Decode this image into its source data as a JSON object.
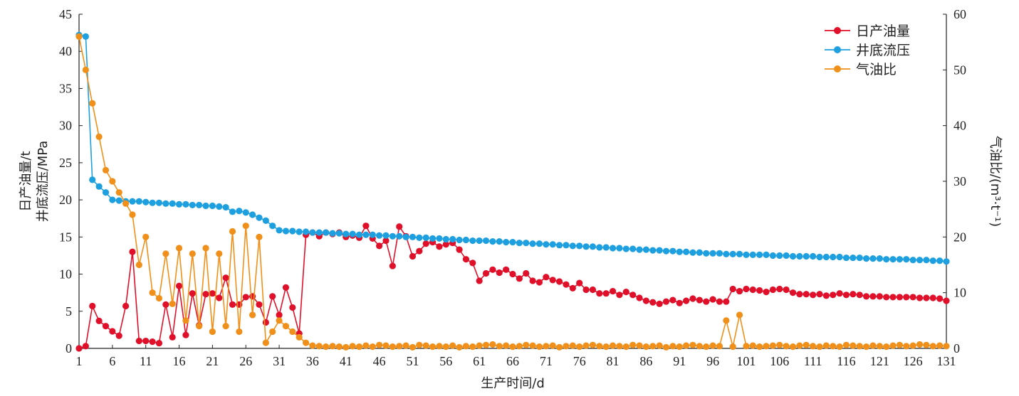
{
  "chart_data": {
    "type": "line",
    "xlabel": "生产时间/d",
    "ylabel_left_line1": "日产油量/t",
    "ylabel_left_line2": "井底流压/MPa",
    "ylabel_right": "气油比/(m³·t⁻¹)",
    "xlim": [
      1,
      131
    ],
    "x_ticks": [
      1,
      6,
      11,
      16,
      21,
      26,
      31,
      36,
      41,
      46,
      51,
      56,
      61,
      66,
      71,
      76,
      81,
      86,
      91,
      96,
      101,
      106,
      111,
      116,
      121,
      126,
      131
    ],
    "ylim_left": [
      0,
      45
    ],
    "y_ticks_left": [
      0,
      5,
      10,
      15,
      20,
      25,
      30,
      35,
      40,
      45
    ],
    "ylim_right": [
      0,
      60
    ],
    "y_ticks_right": [
      0,
      10,
      20,
      30,
      40,
      50,
      60
    ],
    "legend_position": "top-right",
    "series": [
      {
        "name": "日产油量",
        "axis": "left",
        "color": "#e0102a",
        "x": [
          1,
          2,
          3,
          4,
          5,
          6,
          7,
          8,
          9,
          10,
          11,
          12,
          13,
          14,
          15,
          16,
          17,
          18,
          19,
          20,
          21,
          22,
          23,
          24,
          25,
          26,
          27,
          28,
          29,
          30,
          31,
          32,
          33,
          34,
          35,
          36,
          37,
          38,
          39,
          40,
          41,
          42,
          43,
          44,
          45,
          46,
          47,
          48,
          49,
          50,
          51,
          52,
          53,
          54,
          55,
          56,
          57,
          58,
          59,
          60,
          61,
          62,
          63,
          64,
          65,
          66,
          67,
          68,
          69,
          70,
          71,
          72,
          73,
          74,
          75,
          76,
          77,
          78,
          79,
          80,
          81,
          82,
          83,
          84,
          85,
          86,
          87,
          88,
          89,
          90,
          91,
          92,
          93,
          94,
          95,
          96,
          97,
          98,
          99,
          100,
          101,
          102,
          103,
          104,
          105,
          106,
          107,
          108,
          109,
          110,
          111,
          112,
          113,
          114,
          115,
          116,
          117,
          118,
          119,
          120,
          121,
          122,
          123,
          124,
          125,
          126,
          127,
          128,
          129,
          130,
          131
        ],
        "values": [
          0,
          0.3,
          5.7,
          3.7,
          3.0,
          2.3,
          1.7,
          5.7,
          13.0,
          1.0,
          1.0,
          0.9,
          0.7,
          5.9,
          1.5,
          8.4,
          1.8,
          7.4,
          3.1,
          7.3,
          7.4,
          6.8,
          9.5,
          5.9,
          5.9,
          6.9,
          7.0,
          5.9,
          3.5,
          7.0,
          4.5,
          8.2,
          5.5,
          2.0,
          15.3,
          15.6,
          15.1,
          15.6,
          15.4,
          15.6,
          15.0,
          15.2,
          14.9,
          16.5,
          14.8,
          13.8,
          14.5,
          11.1,
          16.4,
          15.1,
          12.4,
          13.1,
          14.1,
          14.3,
          13.7,
          14.0,
          14.2,
          13.3,
          12.0,
          11.5,
          9.1,
          10.1,
          10.6,
          10.2,
          10.6,
          10.0,
          9.4,
          10.1,
          9.1,
          8.9,
          9.6,
          9.2,
          9.0,
          8.6,
          8.1,
          8.8,
          7.9,
          7.9,
          7.4,
          7.4,
          7.7,
          7.2,
          7.6,
          7.2,
          6.8,
          6.4,
          6.2,
          6.0,
          6.3,
          6.5,
          6.1,
          6.4,
          6.7,
          6.5,
          6.3,
          6.6,
          6.3,
          6.3,
          8.0,
          7.7,
          8.0,
          7.9,
          7.8,
          7.6,
          7.9,
          8.0,
          7.9,
          7.5,
          7.3,
          7.3,
          7.2,
          7.3,
          7.1,
          7.2,
          7.4,
          7.2,
          7.3,
          7.2,
          7.0,
          7.0,
          7.0,
          6.9,
          6.9,
          6.9,
          6.9,
          6.9,
          6.8,
          6.8,
          6.8,
          6.7,
          6.4
        ]
      },
      {
        "name": "井底流压",
        "axis": "left",
        "color": "#1ea0e0",
        "x": [
          1,
          2,
          3,
          4,
          5,
          6,
          7,
          8,
          9,
          10,
          11,
          12,
          13,
          14,
          15,
          16,
          17,
          18,
          19,
          20,
          21,
          22,
          23,
          24,
          25,
          26,
          27,
          28,
          29,
          30,
          31,
          32,
          33,
          34,
          35,
          36,
          37,
          38,
          39,
          40,
          41,
          42,
          43,
          44,
          45,
          46,
          47,
          48,
          49,
          50,
          51,
          52,
          53,
          54,
          55,
          56,
          57,
          58,
          59,
          60,
          61,
          62,
          63,
          64,
          65,
          66,
          67,
          68,
          69,
          70,
          71,
          72,
          73,
          74,
          75,
          76,
          77,
          78,
          79,
          80,
          81,
          82,
          83,
          84,
          85,
          86,
          87,
          88,
          89,
          90,
          91,
          92,
          93,
          94,
          95,
          96,
          97,
          98,
          99,
          100,
          101,
          102,
          103,
          104,
          105,
          106,
          107,
          108,
          109,
          110,
          111,
          112,
          113,
          114,
          115,
          116,
          117,
          118,
          119,
          120,
          121,
          122,
          123,
          124,
          125,
          126,
          127,
          128,
          129,
          130,
          131
        ],
        "values": [
          42.2,
          42.0,
          22.7,
          21.8,
          21.0,
          20.0,
          19.9,
          19.8,
          19.8,
          19.8,
          19.7,
          19.6,
          19.6,
          19.5,
          19.5,
          19.4,
          19.4,
          19.3,
          19.3,
          19.2,
          19.2,
          19.1,
          19.0,
          18.4,
          18.5,
          18.3,
          18.0,
          17.6,
          17.2,
          16.5,
          15.9,
          15.8,
          15.8,
          15.7,
          15.7,
          15.6,
          15.6,
          15.6,
          15.5,
          15.5,
          15.4,
          15.4,
          15.3,
          15.3,
          15.3,
          15.2,
          15.2,
          15.1,
          15.1,
          15.0,
          15.0,
          14.9,
          14.9,
          14.8,
          14.8,
          14.7,
          14.7,
          14.6,
          14.6,
          14.5,
          14.5,
          14.5,
          14.4,
          14.4,
          14.3,
          14.3,
          14.2,
          14.2,
          14.1,
          14.1,
          14.0,
          14.0,
          13.9,
          13.9,
          13.8,
          13.8,
          13.7,
          13.7,
          13.6,
          13.6,
          13.5,
          13.5,
          13.4,
          13.4,
          13.3,
          13.3,
          13.2,
          13.2,
          13.1,
          13.1,
          13.0,
          13.0,
          12.9,
          12.9,
          12.8,
          12.8,
          12.8,
          12.7,
          12.7,
          12.7,
          12.6,
          12.6,
          12.6,
          12.6,
          12.5,
          12.5,
          12.5,
          12.4,
          12.4,
          12.4,
          12.4,
          12.3,
          12.3,
          12.3,
          12.3,
          12.2,
          12.2,
          12.2,
          12.1,
          12.1,
          12.1,
          12.0,
          12.0,
          12.0,
          12.0,
          11.9,
          11.9,
          11.9,
          11.8,
          11.8,
          11.7
        ]
      },
      {
        "name": "气油比",
        "axis": "right",
        "color": "#f0901a",
        "x": [
          1,
          2,
          3,
          4,
          5,
          6,
          7,
          8,
          9,
          10,
          11,
          12,
          13,
          14,
          15,
          16,
          17,
          18,
          19,
          20,
          21,
          22,
          23,
          24,
          25,
          26,
          27,
          28,
          29,
          30,
          31,
          32,
          33,
          34,
          35,
          36,
          37,
          38,
          39,
          40,
          41,
          42,
          43,
          44,
          45,
          46,
          47,
          48,
          49,
          50,
          51,
          52,
          53,
          54,
          55,
          56,
          57,
          58,
          59,
          60,
          61,
          62,
          63,
          64,
          65,
          66,
          67,
          68,
          69,
          70,
          71,
          72,
          73,
          74,
          75,
          76,
          77,
          78,
          79,
          80,
          81,
          82,
          83,
          84,
          85,
          86,
          87,
          88,
          89,
          90,
          91,
          92,
          93,
          94,
          95,
          96,
          97,
          98,
          99,
          100,
          101,
          102,
          103,
          104,
          105,
          106,
          107,
          108,
          109,
          110,
          111,
          112,
          113,
          114,
          115,
          116,
          117,
          118,
          119,
          120,
          121,
          122,
          123,
          124,
          125,
          126,
          127,
          128,
          129,
          130,
          131
        ],
        "values": [
          56,
          50,
          44,
          38,
          32,
          30,
          28,
          26,
          24,
          15,
          20,
          10,
          9,
          17,
          8,
          18,
          5,
          17,
          4,
          18,
          3,
          17,
          4,
          21,
          3,
          22,
          6,
          20,
          1,
          3,
          5,
          4,
          3,
          2,
          1,
          0.5,
          0.4,
          0.3,
          0.4,
          0.3,
          0.2,
          0.4,
          0.3,
          0.5,
          0.3,
          0.6,
          0.5,
          0.3,
          0.4,
          0.5,
          0.2,
          0.6,
          0.5,
          0.3,
          0.4,
          0.3,
          0.5,
          0.2,
          0.4,
          0.3,
          0.5,
          0.6,
          0.7,
          0.4,
          0.5,
          0.3,
          0.4,
          0.6,
          0.5,
          0.3,
          0.4,
          0.5,
          0.2,
          0.4,
          0.5,
          0.3,
          0.5,
          0.6,
          0.4,
          0.3,
          0.5,
          0.4,
          0.3,
          0.6,
          0.5,
          0.3,
          0.4,
          0.5,
          0.2,
          0.4,
          0.3,
          0.5,
          0.6,
          0.4,
          0.3,
          0.5,
          0.4,
          5,
          0.3,
          6,
          0.4,
          0.5,
          0.3,
          0.4,
          0.5,
          0.6,
          0.4,
          0.3,
          0.5,
          0.6,
          0.4,
          0.3,
          0.5,
          0.4,
          0.3,
          0.6,
          0.5,
          0.4,
          0.3,
          0.5,
          0.4,
          0.3,
          0.5,
          0.6,
          0.4,
          0.5,
          0.7,
          0.6,
          0.4,
          0.5,
          0.4
        ]
      }
    ]
  }
}
